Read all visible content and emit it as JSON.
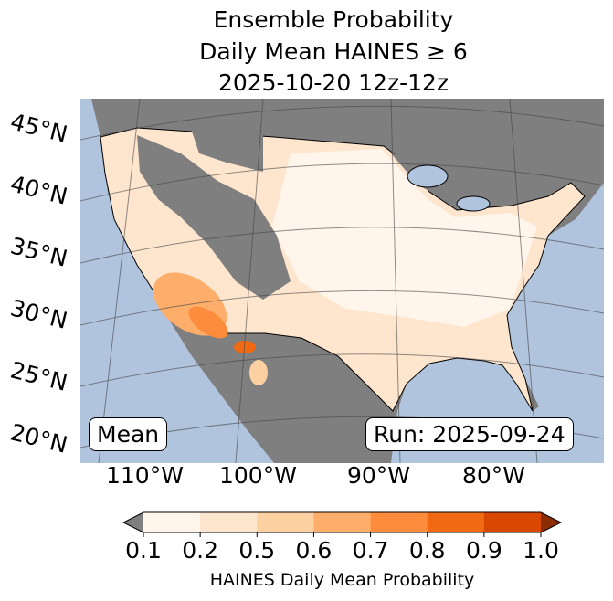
{
  "title": {
    "line1": "Ensemble Probability",
    "line2": "Daily Mean HAINES ≥ 6",
    "line3": "2025-10-20 12z-12z"
  },
  "lat_labels": [
    "45°N",
    "40°N",
    "35°N",
    "30°N",
    "25°N",
    "20°N"
  ],
  "lon_labels": [
    "110°W",
    "100°W",
    "90°W",
    "80°W"
  ],
  "mean_label": "Mean",
  "run_label": "Run: 2025-09-24",
  "colorbar": {
    "ticks": [
      "0.1",
      "0.2",
      "0.5",
      "0.6",
      "0.7",
      "0.8",
      "0.9",
      "1.0"
    ],
    "colors": [
      "#fff5eb",
      "#fee6ce",
      "#fdd0a2",
      "#fdae6b",
      "#fd8d3c",
      "#f16913",
      "#d94801"
    ],
    "under": "#808080",
    "over": "#8c2d04",
    "label": "HAINES Daily Mean Probability"
  },
  "colors": {
    "ocean": "#b0c4de",
    "land": "#7f7f7f"
  }
}
